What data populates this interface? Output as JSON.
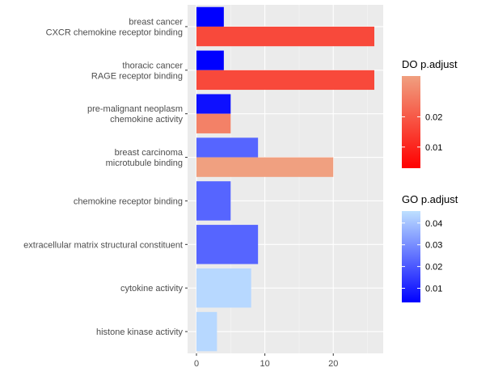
{
  "chart_data": {
    "type": "bar",
    "orientation": "horizontal",
    "x_ticks": [
      0,
      10,
      20
    ],
    "xlim": [
      -1.3,
      27.3
    ],
    "grid": true,
    "legend_position": "right",
    "rows": [
      {
        "label_lines": [
          "breast cancer",
          "CXCR chemokine receptor binding"
        ],
        "bars": [
          {
            "group": "GO",
            "value": 4,
            "p_adjust": 0.0035
          },
          {
            "group": "DO",
            "value": 26,
            "p_adjust": 0.017
          }
        ]
      },
      {
        "label_lines": [
          "thoracic cancer",
          "RAGE receptor binding"
        ],
        "bars": [
          {
            "group": "GO",
            "value": 4,
            "p_adjust": 0.0035
          },
          {
            "group": "DO",
            "value": 26,
            "p_adjust": 0.017
          }
        ]
      },
      {
        "label_lines": [
          "pre-malignant neoplasm",
          "chemokine activity"
        ],
        "bars": [
          {
            "group": "GO",
            "value": 5,
            "p_adjust": 0.0065
          },
          {
            "group": "DO",
            "value": 5,
            "p_adjust": 0.0275
          }
        ]
      },
      {
        "label_lines": [
          "breast carcinoma",
          "microtubule binding"
        ],
        "bars": [
          {
            "group": "GO",
            "value": 9,
            "p_adjust": 0.0225
          },
          {
            "group": "DO",
            "value": 20,
            "p_adjust": 0.0335
          }
        ]
      },
      {
        "label_lines": [
          "chemokine receptor binding"
        ],
        "bars": [
          {
            "group": "GO",
            "value": 5,
            "p_adjust": 0.0225
          }
        ]
      },
      {
        "label_lines": [
          "extracellular matrix structural constituent"
        ],
        "bars": [
          {
            "group": "GO",
            "value": 9,
            "p_adjust": 0.0225
          }
        ]
      },
      {
        "label_lines": [
          "cytokine activity"
        ],
        "bars": [
          {
            "group": "GO",
            "value": 8,
            "p_adjust": 0.044
          }
        ]
      },
      {
        "label_lines": [
          "histone kinase activity"
        ],
        "bars": [
          {
            "group": "GO",
            "value": 3,
            "p_adjust": 0.044
          }
        ]
      }
    ],
    "legends": [
      {
        "key": "DO",
        "title": "DO p.adjust",
        "color_low": "#ff0000",
        "color_high": "#f0a080",
        "range": [
          0.003,
          0.0335
        ],
        "ticks": [
          {
            "value": 0.01,
            "label": "0.01"
          },
          {
            "value": 0.02,
            "label": "0.02"
          }
        ]
      },
      {
        "key": "GO",
        "title": "GO p.adjust",
        "color_low": "#0000ff",
        "color_high": "#bee0ff",
        "range": [
          0.0035,
          0.0455
        ],
        "ticks": [
          {
            "value": 0.01,
            "label": "0.01"
          },
          {
            "value": 0.02,
            "label": "0.02"
          },
          {
            "value": 0.03,
            "label": "0.03"
          },
          {
            "value": 0.04,
            "label": "0.04"
          }
        ]
      }
    ]
  }
}
